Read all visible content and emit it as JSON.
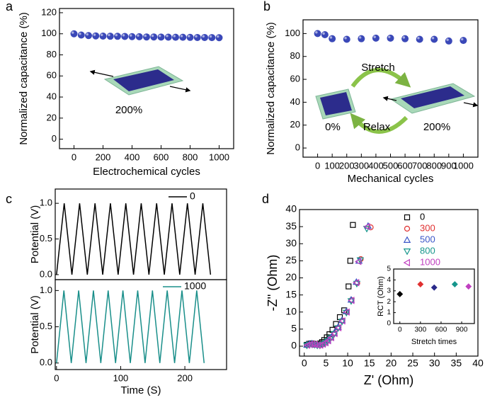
{
  "chart_data": [
    {
      "type": "scatter",
      "panel": "a",
      "xlabel": "Electrochemical cycles",
      "ylabel": "Normalized capacitance (%)",
      "x": [
        0,
        50,
        100,
        150,
        200,
        250,
        300,
        350,
        400,
        450,
        500,
        550,
        600,
        650,
        700,
        750,
        800,
        850,
        900,
        950,
        1000
      ],
      "values": [
        100,
        98.8,
        98.3,
        98,
        97.8,
        97.7,
        97.6,
        97.5,
        97.3,
        97.2,
        97,
        97,
        96.9,
        96.8,
        96.7,
        96.7,
        96.6,
        96.5,
        96.5,
        96.4,
        96.3
      ],
      "color": "#3a48b8",
      "marker": "sphere",
      "xlim": [
        -100,
        1100
      ],
      "xticks": [
        0,
        200,
        400,
        600,
        800,
        1000
      ],
      "ylim": [
        -9,
        124
      ],
      "yticks": [
        0,
        20,
        40,
        60,
        80,
        100,
        120
      ],
      "annotations": [
        "200%"
      ]
    },
    {
      "type": "scatter",
      "panel": "b",
      "xlabel": "Mechanical cycles",
      "ylabel": "Normalized capacitance (%)",
      "x": [
        0,
        50,
        100,
        200,
        300,
        400,
        500,
        600,
        700,
        800,
        900,
        1000
      ],
      "values": [
        100,
        99,
        95.5,
        95,
        95.5,
        96,
        96,
        95.5,
        95,
        95,
        93.5,
        94
      ],
      "color": "#3a48b8",
      "marker": "sphere",
      "xlim": [
        -100,
        1100
      ],
      "xticks": [
        0,
        100,
        200,
        300,
        400,
        500,
        600,
        700,
        800,
        900,
        1000
      ],
      "ylim": [
        -8,
        112
      ],
      "yticks": [
        0,
        20,
        40,
        60,
        80,
        100
      ],
      "annotations": [
        "Stretch",
        "Relax",
        "0%",
        "200%"
      ]
    },
    {
      "type": "line",
      "panel": "c",
      "ylabel": "Potential (V)",
      "legend": "upper right",
      "series": [
        {
          "name": "0",
          "color": "#000000",
          "x": [
            0,
            12,
            24,
            36,
            48,
            60,
            72,
            84,
            96,
            108,
            120,
            132,
            144,
            156,
            168,
            180,
            192,
            204,
            216,
            228,
            240
          ],
          "values": [
            0,
            1,
            0,
            1,
            0,
            1,
            0,
            1,
            0,
            1,
            0,
            1,
            0,
            1,
            0,
            1,
            0,
            1,
            0,
            1,
            0
          ]
        }
      ],
      "xlim": [
        -2,
        265
      ],
      "ylim": [
        -0.07,
        1.2
      ],
      "yticks": [
        {
          "value": 0,
          "label": "0.0"
        },
        {
          "value": 0.5,
          "label": "0.5"
        },
        {
          "value": 1,
          "label": "1.0"
        }
      ]
    },
    {
      "type": "line",
      "xlabel": "Time (S)",
      "ylabel": "Potential (V)",
      "legend": "upper right",
      "series": [
        {
          "name": "1000",
          "color": "#1a8f8a",
          "x": [
            0,
            11.5,
            23,
            34.5,
            46,
            57.5,
            69,
            80.5,
            92,
            103.5,
            115,
            126.5,
            138,
            149.5,
            161,
            172.5,
            184,
            195.5,
            207,
            218.5,
            230
          ],
          "values": [
            0,
            1,
            0,
            1,
            0,
            1,
            0,
            1,
            0,
            1,
            0,
            1,
            0,
            1,
            0,
            1,
            0,
            1,
            0,
            1,
            0
          ]
        }
      ],
      "xlim": [
        -2,
        265
      ],
      "xticks": [
        0,
        100,
        200
      ],
      "ylim": [
        -0.09,
        1.15
      ],
      "yticks": [
        {
          "value": 0,
          "label": "0.0"
        },
        {
          "value": 0.5,
          "label": "0.5"
        },
        {
          "value": 1,
          "label": "1.0"
        }
      ]
    },
    {
      "type": "scatter",
      "panel": "d",
      "xlabel": "Z' (Ohm)",
      "ylabel": "-Z'' (Ohm)",
      "legend": "upper right",
      "series": [
        {
          "name": "0",
          "color": "#000000",
          "marker": "square",
          "x": [
            0.6,
            1.1,
            1.6,
            2.1,
            2.6,
            3.1,
            3.6,
            4.1,
            4.6,
            5.2,
            5.8,
            6.5,
            7.3,
            8.2,
            9.2,
            10.2,
            10.6,
            11.2
          ],
          "values": [
            0.4,
            0.7,
            0.8,
            0.7,
            0.5,
            0.5,
            0.8,
            1.2,
            1.8,
            2.6,
            3.5,
            4.8,
            6.5,
            8.5,
            10.5,
            17.5,
            25,
            35.5
          ]
        },
        {
          "name": "300",
          "color": "#e03030",
          "marker": "circle",
          "x": [
            0.7,
            1.3,
            1.9,
            2.5,
            3.1,
            3.7,
            4.3,
            4.9,
            5.5,
            6.2,
            7,
            7.9,
            8.8,
            9.8,
            10.9,
            12.2,
            13,
            15.3
          ],
          "values": [
            0.3,
            0.6,
            0.7,
            0.5,
            0.3,
            0.3,
            0.6,
            1,
            1.6,
            2.5,
            3.8,
            5.5,
            7.5,
            10,
            13.5,
            18.5,
            25.5,
            34.8
          ]
        },
        {
          "name": "500",
          "color": "#3a56c8",
          "marker": "triangle-up",
          "x": [
            0.6,
            1.2,
            1.8,
            2.4,
            3,
            3.6,
            4.2,
            4.8,
            5.4,
            6.1,
            6.9,
            7.8,
            8.7,
            9.7,
            10.8,
            12,
            12.6,
            14.7
          ],
          "values": [
            0.4,
            0.7,
            0.8,
            0.6,
            0.4,
            0.4,
            0.7,
            1.1,
            1.7,
            2.6,
            3.9,
            5.6,
            7.6,
            10.2,
            13.6,
            18.8,
            25,
            35.2
          ]
        },
        {
          "name": "800",
          "color": "#16968c",
          "marker": "triangle-down",
          "x": [
            0.6,
            1.2,
            1.8,
            2.4,
            3,
            3.6,
            4.2,
            4.8,
            5.4,
            6.1,
            6.9,
            7.8,
            8.7,
            9.7,
            10.8,
            12.1,
            12.9,
            14.4
          ],
          "values": [
            0.2,
            0.4,
            0.5,
            0.4,
            0.2,
            0.2,
            0.5,
            0.9,
            1.5,
            2.4,
            3.6,
            5.3,
            7.2,
            9.8,
            13.2,
            18.3,
            25.2,
            34.4
          ]
        },
        {
          "name": "1000",
          "color": "#c040c0",
          "marker": "triangle-left",
          "x": [
            0.7,
            1.3,
            1.9,
            2.5,
            3.1,
            3.7,
            4.3,
            4.9,
            5.5,
            6.2,
            7,
            7.9,
            8.8,
            9.8,
            10.9,
            12,
            12.5,
            14.5
          ],
          "values": [
            0.3,
            0.5,
            0.6,
            0.5,
            0.3,
            0.3,
            0.6,
            1,
            1.6,
            2.5,
            3.7,
            5.4,
            7.4,
            10,
            13.4,
            18.6,
            24.8,
            35
          ]
        }
      ],
      "xlim": [
        -1.1,
        40
      ],
      "xticks": [
        0,
        5,
        10,
        15,
        20,
        25,
        30,
        35,
        40
      ],
      "ylim": [
        -2.9,
        40
      ],
      "yticks": [
        0,
        5,
        10,
        15,
        20,
        25,
        30,
        35,
        40
      ]
    },
    {
      "type": "scatter",
      "xlabel": "Stretch times",
      "ylabel": "RCT (Ohm)",
      "x": [
        0,
        300,
        500,
        800,
        1000
      ],
      "values": [
        2.7,
        3.6,
        3.3,
        3.6,
        3.4
      ],
      "colors": [
        "#000000",
        "#e03030",
        "#2a2a8a",
        "#16968c",
        "#c040c0"
      ],
      "marker": "diamond",
      "xlim": [
        -90,
        1085
      ],
      "xticks": [
        0,
        300,
        600,
        900
      ],
      "ylim": [
        0,
        5
      ],
      "yticks": [
        0,
        1,
        2,
        3,
        4,
        5
      ]
    }
  ]
}
